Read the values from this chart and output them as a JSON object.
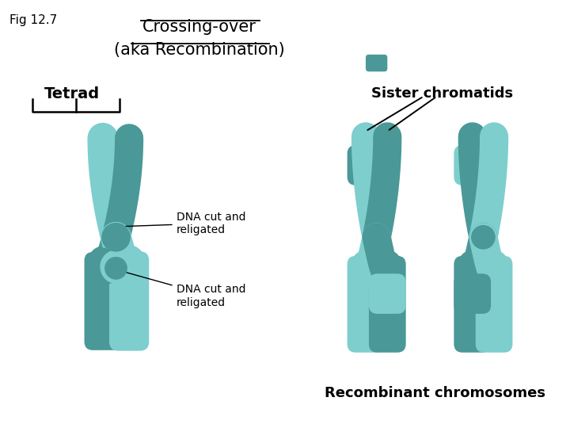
{
  "bg_color": "#ffffff",
  "fig_label": "Fig 12.7",
  "title_line1": "Crossing-over",
  "title_line2": "(aka Recombination)",
  "label_tetrad": "Tetrad",
  "label_sister": "Sister chromatids",
  "label_recombinant": "Recombinant chromosomes",
  "label_dna1": "DNA cut and\nreligated",
  "label_dna2": "DNA cut and\nreligated",
  "color_light": "#7ECECE",
  "color_dark": "#4A9898",
  "color_mid": "#5AACAC"
}
